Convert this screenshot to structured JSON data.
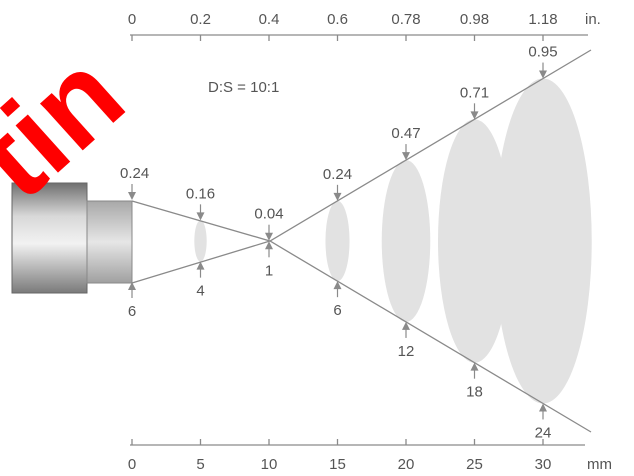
{
  "ratio_label": "D:S = 10:1",
  "top_axis": {
    "unit": "in.",
    "ticks": [
      "0",
      "0.2",
      "0.4",
      "0.6",
      "0.78",
      "0.98",
      "1.18"
    ]
  },
  "bottom_axis": {
    "unit": "mm",
    "ticks": [
      "0",
      "5",
      "10",
      "15",
      "20",
      "25",
      "30"
    ]
  },
  "spots": [
    {
      "distance_mm": 0,
      "diameter_in": "0.24",
      "diameter_mm": "6"
    },
    {
      "distance_mm": 5,
      "diameter_in": "0.16",
      "diameter_mm": "4"
    },
    {
      "distance_mm": 10,
      "diameter_in": "0.04",
      "diameter_mm": "1"
    },
    {
      "distance_mm": 15,
      "diameter_in": "0.24",
      "diameter_mm": "6"
    },
    {
      "distance_mm": 20,
      "diameter_in": "0.47",
      "diameter_mm": "12"
    },
    {
      "distance_mm": 25,
      "diameter_in": "0.71",
      "diameter_mm": "18"
    },
    {
      "distance_mm": 30,
      "diameter_in": "0.95",
      "diameter_mm": "24"
    }
  ],
  "watermark": "tin",
  "colors": {
    "line": "#8a8a8a",
    "spot": "#e2e2e2",
    "text": "#555555",
    "watermark": "#ff0000"
  }
}
